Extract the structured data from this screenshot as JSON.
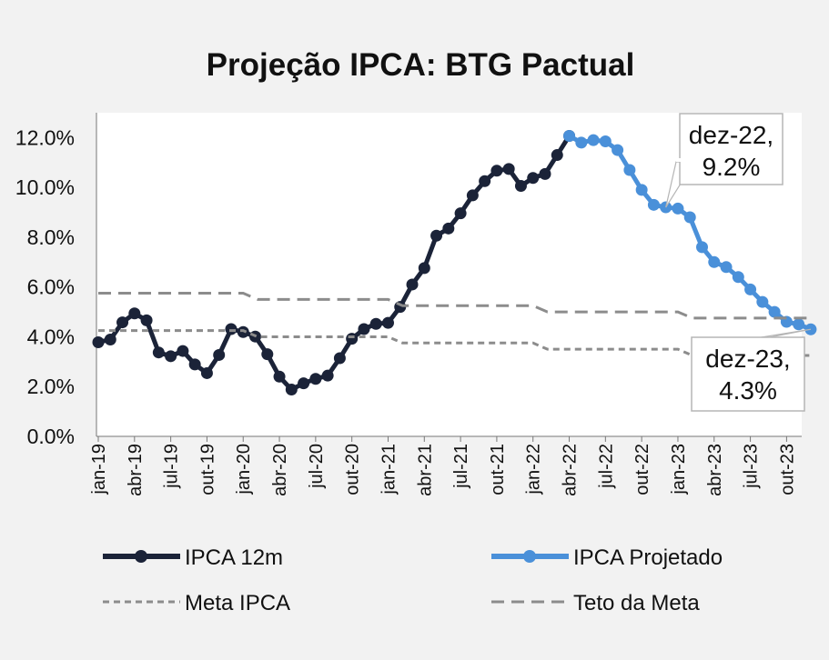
{
  "chart_data": {
    "type": "line",
    "title": "Projeção IPCA: BTG Pactual",
    "xlabel": "",
    "ylabel": "",
    "ylim": [
      0,
      0.13
    ],
    "y_ticks": [
      "0.0%",
      "2.0%",
      "4.0%",
      "6.0%",
      "8.0%",
      "10.0%",
      "12.0%"
    ],
    "y_tick_values": [
      0,
      0.02,
      0.04,
      0.06,
      0.08,
      0.1,
      0.12
    ],
    "x_tick_labels": [
      "jan-19",
      "abr-19",
      "jul-19",
      "out-19",
      "jan-20",
      "abr-20",
      "jul-20",
      "out-20",
      "jan-21",
      "abr-21",
      "jul-21",
      "out-21",
      "jan-22",
      "abr-22",
      "jul-22",
      "out-22",
      "jan-23",
      "abr-23",
      "jul-23",
      "out-23"
    ],
    "x_range": [
      "jan-19",
      "dez-23"
    ],
    "legend_position": "bottom",
    "series": [
      {
        "name": "IPCA 12m",
        "color": "#1b2338",
        "style": "solid-markers",
        "x": [
          "jan-19",
          "fev-19",
          "mar-19",
          "abr-19",
          "mai-19",
          "jun-19",
          "jul-19",
          "ago-19",
          "set-19",
          "out-19",
          "nov-19",
          "dez-19",
          "jan-20",
          "fev-20",
          "mar-20",
          "abr-20",
          "mai-20",
          "jun-20",
          "jul-20",
          "ago-20",
          "set-20",
          "out-20",
          "nov-20",
          "dez-20",
          "jan-21",
          "fev-21",
          "mar-21",
          "abr-21",
          "mai-21",
          "jun-21",
          "jul-21",
          "ago-21",
          "set-21",
          "out-21",
          "nov-21",
          "dez-21",
          "jan-22",
          "fev-22",
          "mar-22",
          "abr-22"
        ],
        "values": [
          0.0378,
          0.0389,
          0.0458,
          0.0494,
          0.0466,
          0.0337,
          0.0322,
          0.0343,
          0.0289,
          0.0254,
          0.0327,
          0.0431,
          0.0419,
          0.0401,
          0.033,
          0.024,
          0.0188,
          0.0213,
          0.0231,
          0.0244,
          0.0314,
          0.0392,
          0.0431,
          0.0452,
          0.0456,
          0.052,
          0.061,
          0.0676,
          0.0806,
          0.0835,
          0.0896,
          0.0968,
          0.1025,
          0.1067,
          0.1074,
          0.1006,
          0.1038,
          0.1054,
          0.113,
          0.1207
        ]
      },
      {
        "name": "IPCA Projetado",
        "color": "#4a90d9",
        "style": "solid-markers",
        "x": [
          "abr-22",
          "mai-22",
          "jun-22",
          "jul-22",
          "ago-22",
          "set-22",
          "out-22",
          "nov-22",
          "dez-22",
          "jan-23",
          "fev-23",
          "mar-23",
          "abr-23",
          "mai-23",
          "jun-23",
          "jul-23",
          "ago-23",
          "set-23",
          "out-23",
          "nov-23",
          "dez-23"
        ],
        "values": [
          0.1207,
          0.118,
          0.119,
          0.1185,
          0.115,
          0.107,
          0.099,
          0.093,
          0.092,
          0.0915,
          0.088,
          0.076,
          0.07,
          0.068,
          0.064,
          0.059,
          0.054,
          0.05,
          0.046,
          0.045,
          0.043
        ]
      },
      {
        "name": "Meta IPCA",
        "color": "#8c8c8c",
        "style": "dashed",
        "x_start": [
          "jan-19",
          "jan-20",
          "jan-21",
          "jan-22",
          "jan-23"
        ],
        "values": [
          0.0425,
          0.04,
          0.0375,
          0.035,
          0.0325
        ]
      },
      {
        "name": "Teto da Meta",
        "color": "#8c8c8c",
        "style": "long-dashed",
        "x_start": [
          "jan-19",
          "jan-20",
          "jan-21",
          "jan-22",
          "jan-23"
        ],
        "values": [
          0.0575,
          0.055,
          0.0525,
          0.05,
          0.0475
        ]
      }
    ],
    "annotations": [
      {
        "line1": "dez-22,",
        "line2": "9.2%",
        "x": "dez-22",
        "value": 0.092
      },
      {
        "line1": "dez-23,",
        "line2": "4.3%",
        "x": "dez-23",
        "value": 0.043
      }
    ]
  }
}
